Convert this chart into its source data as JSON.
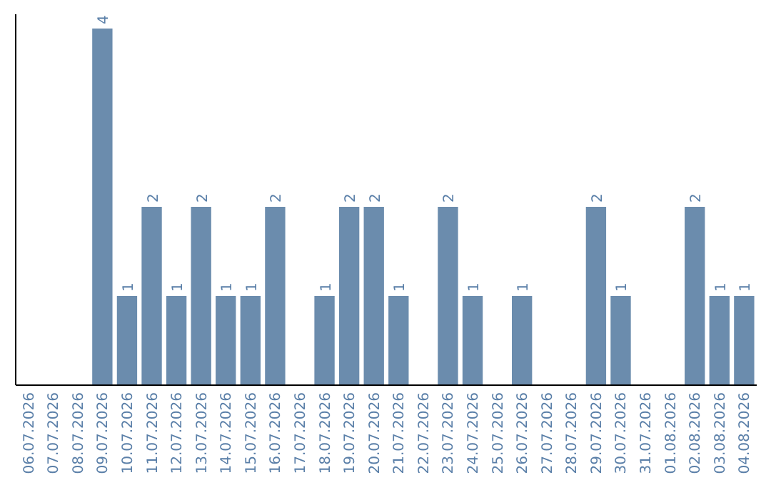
{
  "chart_data": {
    "type": "bar",
    "categories": [
      "06.07.2026",
      "07.07.2026",
      "08.07.2026",
      "09.07.2026",
      "10.07.2026",
      "11.07.2026",
      "12.07.2026",
      "13.07.2026",
      "14.07.2026",
      "15.07.2026",
      "16.07.2026",
      "17.07.2026",
      "18.07.2026",
      "19.07.2026",
      "20.07.2026",
      "21.07.2026",
      "22.07.2026",
      "23.07.2026",
      "24.07.2026",
      "25.07.2026",
      "26.07.2026",
      "27.07.2026",
      "28.07.2026",
      "29.07.2026",
      "30.07.2026",
      "31.07.2026",
      "01.08.2026",
      "02.08.2026",
      "03.08.2026",
      "04.08.2026"
    ],
    "values": [
      0,
      0,
      0,
      4,
      1,
      2,
      1,
      2,
      1,
      1,
      2,
      0,
      1,
      2,
      2,
      1,
      0,
      2,
      1,
      0,
      1,
      0,
      0,
      2,
      1,
      0,
      0,
      2,
      1,
      1
    ],
    "value_labels": [
      null,
      null,
      null,
      "4",
      "1",
      "2",
      "1",
      "2",
      "1",
      "1",
      "2",
      null,
      "1",
      "2",
      "2",
      "1",
      null,
      "2",
      "1",
      null,
      "1",
      null,
      null,
      "2",
      "1",
      null,
      null,
      "2",
      "1",
      "1"
    ],
    "color": "#6b8cad",
    "tick_labels": "x"
  }
}
